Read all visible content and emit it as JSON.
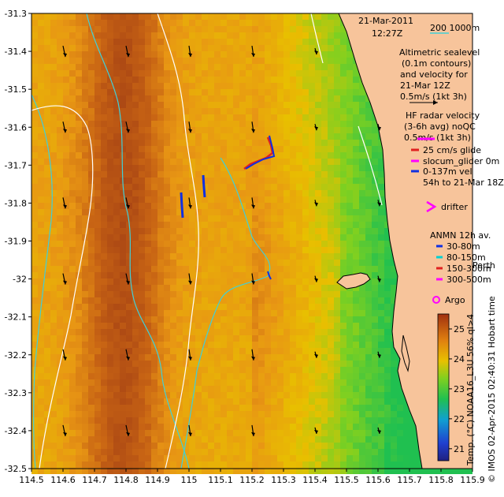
{
  "map": {
    "lon_range": [
      114.5,
      115.9
    ],
    "lat_range": [
      -32.5,
      -31.3
    ],
    "x_ticks": [
      "114.5",
      "114.6",
      "114.7",
      "114.8",
      "114.9",
      "115",
      "115.1",
      "115.2",
      "115.3",
      "115.4",
      "115.5",
      "115.6",
      "115.7",
      "115.8",
      "115.9"
    ],
    "y_ticks": [
      "-31.3",
      "-31.4",
      "-31.5",
      "-31.6",
      "-31.7",
      "-31.8",
      "-31.9",
      "-32",
      "-32.1",
      "-32.2",
      "-32.3",
      "-32.4",
      "-32.5"
    ],
    "x_tick_values": [
      114.5,
      114.6,
      114.7,
      114.8,
      114.9,
      115.0,
      115.1,
      115.2,
      115.3,
      115.4,
      115.5,
      115.6,
      115.7,
      115.8,
      115.9
    ],
    "y_tick_values": [
      -31.3,
      -31.4,
      -31.5,
      -31.6,
      -31.7,
      -31.8,
      -31.9,
      -32.0,
      -32.1,
      -32.2,
      -32.3,
      -32.4,
      -32.5
    ]
  },
  "header": {
    "date": "21-Mar-2011",
    "time": "12:27Z",
    "depth_legend": "200  1000m"
  },
  "legend": {
    "altimetric": [
      "Altimetric sealevel",
      "(0.1m contours)",
      "and velocity for",
      "21-Mar 12Z",
      "0.5m/s (1kt 3h)"
    ],
    "hf_radar": [
      "HF radar velocity",
      "(3-6h avg) noQC",
      "0.5m/s (1kt 3h)"
    ],
    "glider": [
      "25 cm/s glide",
      "slocum_glider 0m",
      "0-137m vel",
      "54h to 21-Mar 18Z"
    ],
    "drifter": "drifter",
    "anmn_title": "ANMN 12h av.",
    "anmn": [
      "30-80m",
      "80-150m",
      "150-300m",
      "300-500m"
    ],
    "place": "Perth",
    "argo": "Argo"
  },
  "colorbar": {
    "ticks": [
      "21",
      "22",
      "23",
      "24",
      "25"
    ],
    "tick_values": [
      21,
      22,
      23,
      24,
      25
    ],
    "range": [
      20.6,
      25.5
    ],
    "label": "Temp. (°C) NOAA16_L3U 56% ql>4"
  },
  "credit": "© IMOS 02-Apr-2015 02:40:31 Hobart time",
  "colors": {
    "land": "#f7c49b",
    "contour": "#40d0d8",
    "glider_red": "#e02020",
    "glider_blue": "#1030e0",
    "drifter": "#ff00ff",
    "anmn_30_80": "#1030e0",
    "anmn_80_150": "#00d0d0",
    "anmn_150_300": "#e02020",
    "anmn_300_500": "#ff00ff"
  }
}
